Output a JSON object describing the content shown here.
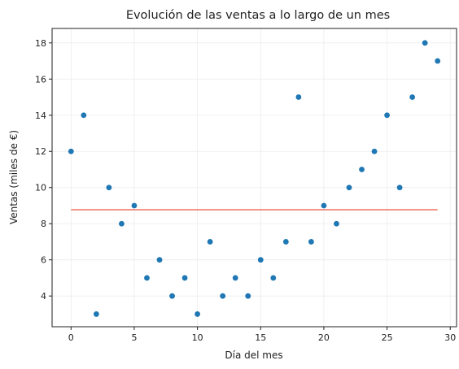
{
  "chart_data": {
    "type": "scatter",
    "title": "Evolución de las ventas a lo largo de un mes",
    "xlabel": "Día del mes",
    "ylabel": "Ventas (miles de €)",
    "xlim": [
      -1.5,
      30.5
    ],
    "ylim": [
      2.3,
      18.8
    ],
    "xticks": [
      0,
      5,
      10,
      15,
      20,
      25,
      30
    ],
    "yticks": [
      4,
      6,
      8,
      10,
      12,
      14,
      16,
      18
    ],
    "grid": true,
    "legend": "none",
    "series": [
      {
        "x": [
          0,
          1,
          2,
          3,
          4,
          5,
          6,
          7,
          8,
          9,
          10,
          11,
          12,
          13,
          14,
          15,
          16,
          17,
          18,
          19,
          20,
          21,
          22,
          23,
          24,
          25,
          26,
          27,
          28,
          29
        ],
        "y": [
          12,
          14,
          3,
          10,
          8,
          9,
          5,
          6,
          4,
          5,
          3,
          7,
          4,
          5,
          4,
          6,
          5,
          7,
          15,
          7,
          9,
          8,
          10,
          11,
          12,
          14,
          10,
          15,
          18,
          17
        ],
        "color": "#1f77b4"
      }
    ],
    "reference_line": {
      "x": [
        0,
        29
      ],
      "y": 8.77,
      "color": "#f07a6a"
    }
  }
}
